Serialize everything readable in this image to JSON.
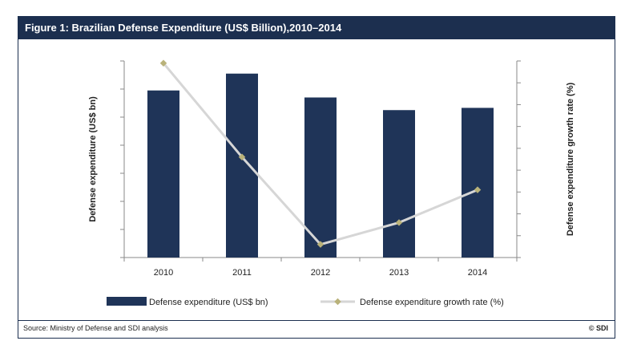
{
  "header": {
    "title": "Figure 1: Brazilian Defense Expenditure (US$ Billion),2010–2014"
  },
  "footer": {
    "source": "Source: Ministry of Defense and SDI analysis",
    "copyright": "© SDI"
  },
  "colors": {
    "bar": "#1f3458",
    "line": "#d6d6d6",
    "marker": "#b9b27a",
    "header_bg": "#1c2f4f"
  },
  "chart_data": {
    "type": "bar",
    "categories": [
      "2010",
      "2011",
      "2012",
      "2013",
      "2014"
    ],
    "ylabel": "Defense expenditure (US$ bn)",
    "y2label": "Defense expenditure  growth rate (%)",
    "ylim": [
      0,
      7
    ],
    "y2lim": [
      0,
      9
    ],
    "y_ticks": 7,
    "y2_ticks": 9,
    "tick_labels_shown": false,
    "grid": false,
    "legend_position": "bottom",
    "series": [
      {
        "name": "Defense expenditure (US$ bn)",
        "type": "bar",
        "axis": "left",
        "values": [
          5.95,
          6.55,
          5.7,
          5.25,
          5.33
        ]
      },
      {
        "name": "Defense expenditure growth rate (%)",
        "type": "line",
        "axis": "right",
        "values": [
          8.9,
          4.6,
          0.6,
          1.6,
          3.1
        ]
      }
    ]
  }
}
